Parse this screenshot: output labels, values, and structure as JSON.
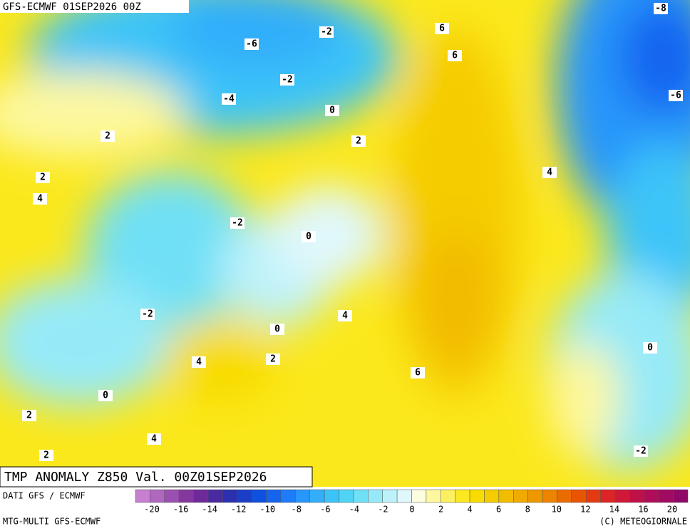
{
  "header": "GFS-ECMWF 01SEP2026 00Z",
  "title": "TMP ANOMALY Z850 Val. 00Z01SEP2026",
  "source": "DATI GFS / ECMWF",
  "model": "MTG-MULTI GFS-ECMWF",
  "copyright": "(C) METEOGIORNALE",
  "contour_labels": [
    -8,
    -6,
    -2,
    6,
    6,
    -2,
    -4,
    0,
    -6,
    2,
    2,
    2,
    4,
    4,
    -2,
    0,
    -2,
    4,
    0,
    0,
    2,
    4,
    6,
    0,
    2,
    4,
    2,
    -2
  ],
  "colorbar": {
    "ticks": [
      -20,
      -16,
      -14,
      -12,
      -10,
      -8,
      -6,
      -4,
      -2,
      0,
      2,
      4,
      6,
      8,
      10,
      12,
      14,
      16,
      20
    ],
    "colors": [
      "#c77fd0",
      "#b067c0",
      "#9a50b0",
      "#84389e",
      "#6e2a9a",
      "#4a2aa0",
      "#2a30b0",
      "#1a3ec8",
      "#1050e0",
      "#1464f0",
      "#1e7cf8",
      "#2896fa",
      "#32aefa",
      "#3cc4f8",
      "#50d4f6",
      "#70e0f6",
      "#96eaf8",
      "#bef2fa",
      "#e0f8fc",
      "#fdfde0",
      "#fdf8a0",
      "#fdf060",
      "#fbe820",
      "#f8dc00",
      "#f5cc00",
      "#f2bc00",
      "#f0aa00",
      "#ee9800",
      "#ec8400",
      "#ea6c00",
      "#e85400",
      "#e43a10",
      "#de2424",
      "#d01838",
      "#c01048",
      "#b00c58",
      "#a00a60",
      "#900868"
    ]
  }
}
